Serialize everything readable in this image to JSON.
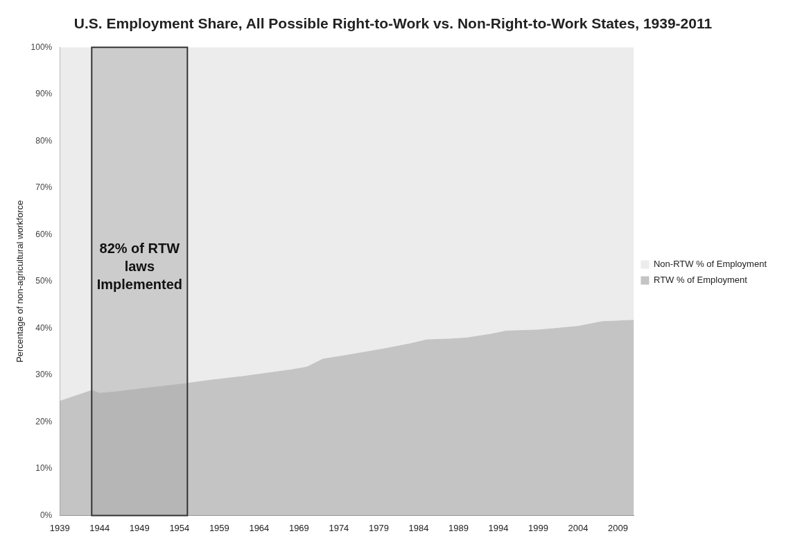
{
  "chart_data": {
    "type": "area",
    "title": "U.S. Employment Share, All Possible Right-to-Work vs. Non-Right-to-Work States, 1939-2011",
    "ylabel": "Percentage of non-agricultural workforce",
    "x": [
      1939,
      1943,
      1944,
      1946,
      1950,
      1955,
      1958,
      1959,
      1962,
      1965,
      1968,
      1970,
      1972,
      1975,
      1978,
      1980,
      1983,
      1985,
      1988,
      1990,
      1993,
      1995,
      1999,
      2001,
      2004,
      2007,
      2011
    ],
    "series": [
      {
        "name": "RTW % of Employment",
        "color": "#c4c4c4",
        "values": [
          24.5,
          26.8,
          26.2,
          26.5,
          27.3,
          28.3,
          29,
          29.2,
          29.8,
          30.5,
          31.2,
          31.8,
          33.5,
          34.3,
          35.2,
          35.8,
          36.8,
          37.6,
          37.8,
          38,
          38.8,
          39.5,
          39.7,
          40,
          40.5,
          41.5,
          41.8
        ]
      },
      {
        "name": "Non-RTW % of Employment",
        "color": "#ececec",
        "values": [
          75.5,
          73.2,
          73.8,
          73.5,
          72.7,
          71.7,
          71,
          70.8,
          70.2,
          69.5,
          68.8,
          68.2,
          66.5,
          65.7,
          64.8,
          64.2,
          63.2,
          62.4,
          62.2,
          62,
          61.2,
          60.5,
          60.3,
          60,
          59.5,
          58.5,
          58.2
        ]
      }
    ],
    "stacked": true,
    "xlim": [
      1939,
      2011
    ],
    "xticks": [
      1939,
      1944,
      1949,
      1954,
      1959,
      1964,
      1969,
      1974,
      1979,
      1984,
      1989,
      1994,
      1999,
      2004,
      2009
    ],
    "ylim": [
      0,
      100
    ],
    "yticks": [
      {
        "value": 0,
        "label": "0%"
      },
      {
        "value": 10,
        "label": "10%"
      },
      {
        "value": 20,
        "label": "20%"
      },
      {
        "value": 30,
        "label": "30%"
      },
      {
        "value": 40,
        "label": "40%"
      },
      {
        "value": 50,
        "label": "50%"
      },
      {
        "value": 60,
        "label": "60%"
      },
      {
        "value": 70,
        "label": "70%"
      },
      {
        "value": 80,
        "label": "80%"
      },
      {
        "value": 90,
        "label": "90%"
      },
      {
        "value": 100,
        "label": "100%"
      }
    ],
    "bands": [
      {
        "axis": "x",
        "from": 1943,
        "to": 1955,
        "label": "82% of RTW laws Implemented",
        "color": "#a6a6a6"
      }
    ],
    "grid": false,
    "legend": "right"
  }
}
